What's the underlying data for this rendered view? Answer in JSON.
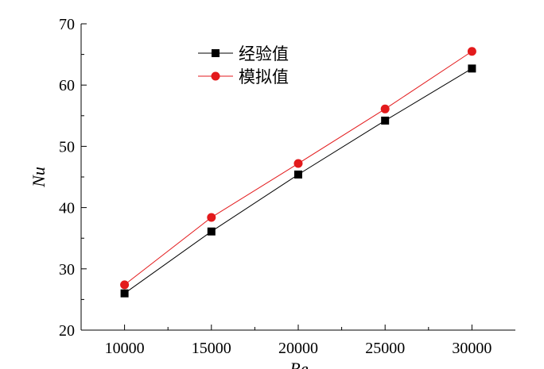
{
  "chart_data": {
    "type": "line",
    "title": "",
    "xlabel": "Re",
    "ylabel": "Nu",
    "xlim": [
      7500,
      32500
    ],
    "ylim": [
      20,
      70
    ],
    "xticks": [
      10000,
      15000,
      20000,
      25000,
      30000
    ],
    "yticks": [
      20,
      30,
      40,
      50,
      60,
      70
    ],
    "grid": false,
    "legend_position": "top-left",
    "x": [
      10000,
      15000,
      20000,
      25000,
      30000
    ],
    "series": [
      {
        "name": "经验值",
        "color": "#000000",
        "marker": "square",
        "values": [
          26.0,
          36.1,
          45.4,
          54.2,
          62.7
        ]
      },
      {
        "name": "模拟值",
        "color": "#e31a1c",
        "marker": "circle",
        "values": [
          27.4,
          38.4,
          47.2,
          56.1,
          65.5
        ]
      }
    ]
  }
}
